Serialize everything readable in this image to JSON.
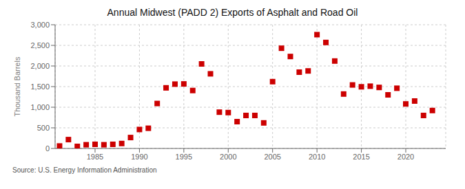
{
  "chart_data": {
    "type": "scatter",
    "title": "Annual Midwest (PADD 2) Exports of Asphalt and Road Oil",
    "ylabel": "Thousand Barrels",
    "annotation": "Source: U.S. Energy Information Administration",
    "x": [
      1981,
      1982,
      1983,
      1984,
      1985,
      1986,
      1987,
      1988,
      1989,
      1990,
      1991,
      1992,
      1993,
      1994,
      1995,
      1996,
      1997,
      1998,
      1999,
      2000,
      2001,
      2002,
      2003,
      2004,
      2005,
      2006,
      2007,
      2008,
      2009,
      2010,
      2011,
      2012,
      2013,
      2014,
      2015,
      2016,
      2017,
      2018,
      2019,
      2020,
      2021,
      2022,
      2023
    ],
    "values": [
      60,
      215,
      50,
      90,
      100,
      90,
      100,
      120,
      265,
      460,
      490,
      1090,
      1470,
      1560,
      1565,
      1405,
      2050,
      1810,
      880,
      870,
      650,
      800,
      800,
      620,
      1620,
      2430,
      2230,
      1850,
      1880,
      2760,
      2570,
      2120,
      1320,
      1540,
      1495,
      1510,
      1480,
      1300,
      1460,
      1080,
      1150,
      800,
      920
    ],
    "color": "#cc0000",
    "marker": "square",
    "xlim": [
      1980.5,
      2024.5
    ],
    "xticks": [
      1985,
      1990,
      1995,
      2000,
      2005,
      2010,
      2015,
      2020
    ],
    "ylim": [
      0,
      3000
    ],
    "yticks": [
      0,
      500,
      {
        "value": 1000,
        "label": "1,000"
      },
      {
        "value": 1500,
        "label": "1,500"
      },
      {
        "value": 2000,
        "label": "2,000"
      },
      {
        "value": 2500,
        "label": "2,500"
      },
      {
        "value": 3000,
        "label": "3,000"
      }
    ],
    "grid": true
  }
}
